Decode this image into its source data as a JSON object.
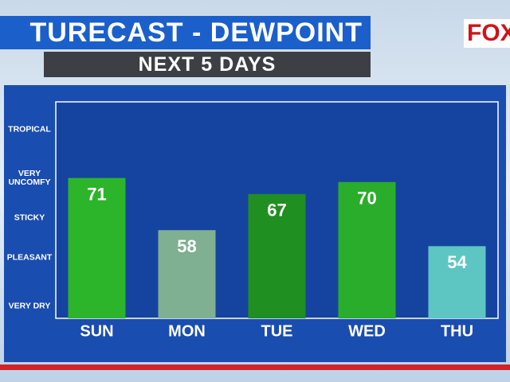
{
  "logo": "FOX",
  "chart_data": {
    "type": "bar",
    "title": "TURECAST - DEWPOINT",
    "subtitle": "NEXT 5 DAYS",
    "categories": [
      "SUN",
      "MON",
      "TUE",
      "WED",
      "THU"
    ],
    "values": [
      71,
      58,
      67,
      70,
      54
    ],
    "colors": [
      "#2cb52a",
      "#7fb091",
      "#1f8f21",
      "#2aad2a",
      "#5ec6c2"
    ],
    "ylim": [
      36,
      90
    ],
    "yticks": [
      {
        "value": 83,
        "label": "TROPICAL"
      },
      {
        "value": 71,
        "label": "VERY UNCOMFY"
      },
      {
        "value": 61,
        "label": "STICKY"
      },
      {
        "value": 51,
        "label": "PLEASANT"
      },
      {
        "value": 39,
        "label": "VERY DRY"
      }
    ],
    "grid": false
  }
}
